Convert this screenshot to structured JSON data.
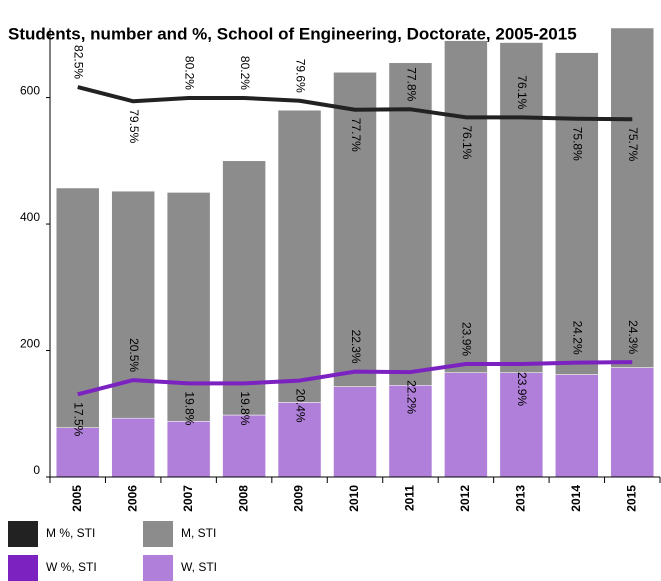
{
  "chart_data": {
    "type": "bar",
    "title": "Students, number and %, School of Engineering, Doctorate, 2005-2015",
    "categories": [
      "2005",
      "2006",
      "2007",
      "2008",
      "2009",
      "2010",
      "2011",
      "2012",
      "2013",
      "2014",
      "2015"
    ],
    "ylim": [
      0,
      710
    ],
    "yticks": [
      0,
      200,
      400,
      600
    ],
    "y2lim": [
      0,
      95
    ],
    "series": [
      {
        "name": "W, STI",
        "type": "bar",
        "color": "#b07fd9",
        "values": [
          78,
          93,
          88,
          98,
          118,
          143,
          145,
          165,
          165,
          162,
          173
        ]
      },
      {
        "name": "M, STI",
        "type": "bar",
        "color": "#8c8c8c",
        "values": [
          379,
          359,
          362,
          402,
          462,
          497,
          510,
          525,
          522,
          509,
          539
        ]
      },
      {
        "name": "M %, STI",
        "type": "line",
        "axis": "y2",
        "color": "#222222",
        "values": [
          82.5,
          79.5,
          80.2,
          80.2,
          79.6,
          77.7,
          77.8,
          76.1,
          76.1,
          75.8,
          75.7
        ],
        "value_labels": [
          "82.5%",
          "79.5%",
          "80.2%",
          "80.2%",
          "79.6%",
          "77.7%",
          "77.8%",
          "76.1%",
          "76.1%",
          "75.8%",
          "75.7%"
        ]
      },
      {
        "name": "W %, STI",
        "type": "line",
        "axis": "y2",
        "color": "#7b22c0",
        "values": [
          17.5,
          20.5,
          19.8,
          19.8,
          20.4,
          22.3,
          22.2,
          23.9,
          23.9,
          24.2,
          24.3
        ],
        "value_labels": [
          "17.5%",
          "20.5%",
          "19.8%",
          "19.8%",
          "20.4%",
          "22.3%",
          "22.2%",
          "23.9%",
          "23.9%",
          "24.2%",
          "24.3%"
        ]
      }
    ]
  }
}
